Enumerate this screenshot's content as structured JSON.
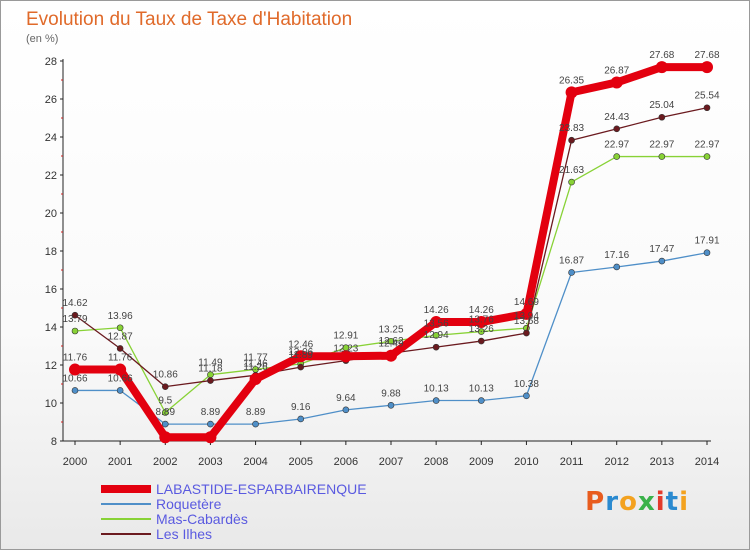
{
  "chart_data": {
    "type": "line",
    "title": "Evolution du Taux de Taxe d'Habitation",
    "subtitle": "(en %)",
    "ylim": [
      8,
      28
    ],
    "yticks": [
      8,
      10,
      12,
      14,
      16,
      18,
      20,
      22,
      24,
      26,
      28
    ],
    "grid": false,
    "legend_position": "bottom-left",
    "categories": [
      "2000",
      "2001",
      "2002",
      "2003",
      "2004",
      "2005",
      "2006",
      "2007",
      "2008",
      "2009",
      "2010",
      "2011",
      "2012",
      "2013",
      "2014"
    ],
    "series": [
      {
        "name": "LABASTIDE-ESPARBAIRENQUE",
        "color": "#e3000f",
        "values": [
          11.76,
          11.76,
          8.2,
          8.2,
          11.26,
          12.46,
          12.46,
          12.49,
          14.26,
          14.26,
          14.69,
          26.35,
          26.87,
          27.68,
          27.68
        ],
        "labels": [
          "11.76",
          "11.76",
          "",
          "",
          "11.26",
          "12.46",
          "",
          "12.49",
          "14.26",
          "14.26",
          "14.69",
          "26.35",
          "26.87",
          "27.68",
          "27.68"
        ]
      },
      {
        "name": "Roquetère",
        "color": "#4f8fc8",
        "values": [
          10.66,
          10.66,
          8.89,
          8.89,
          8.89,
          9.16,
          9.64,
          9.88,
          10.13,
          10.13,
          10.38,
          16.87,
          17.16,
          17.47,
          17.91
        ],
        "labels": [
          "10.66",
          "10.66",
          "8.89",
          "8.89",
          "8.89",
          "9.16",
          "9.64",
          "9.88",
          "10.13",
          "10.13",
          "10.38",
          "16.87",
          "17.16",
          "17.47",
          "17.91"
        ]
      },
      {
        "name": "Mas-Cabardès",
        "color": "#88d236",
        "values": [
          13.79,
          13.96,
          9.5,
          11.49,
          11.77,
          12.06,
          12.91,
          13.25,
          13.56,
          13.76,
          13.94,
          21.63,
          22.97,
          22.97,
          22.97
        ],
        "labels": [
          "13.79",
          "13.96",
          "9.5",
          "11.49",
          "11.77",
          "12.06",
          "12.91",
          "13.25",
          "13.56",
          "13.76",
          "13.94",
          "21.63",
          "22.97",
          "22.97",
          "22.97"
        ]
      },
      {
        "name": "Les Ilhes",
        "color": "#6b1a1f",
        "values": [
          14.62,
          12.87,
          10.86,
          11.18,
          11.46,
          11.89,
          12.23,
          12.62,
          12.94,
          13.26,
          13.68,
          23.83,
          24.43,
          25.04,
          25.54
        ],
        "labels": [
          "14.62",
          "12.87",
          "10.86",
          "11.18",
          "11.46",
          "11.89",
          "12.23",
          "12.62",
          "12.94",
          "13.26",
          "13.68",
          "23.83",
          "24.43",
          "25.04",
          "25.54"
        ]
      }
    ]
  },
  "logo": {
    "letters": [
      "P",
      "r",
      "o",
      "x",
      "i",
      "t",
      "i"
    ],
    "colors": [
      "#e85c1e",
      "#2a8ad0",
      "#f3a21f",
      "#3ab24a",
      "#e33b2b",
      "#2a8ad0",
      "#f3a21f"
    ]
  }
}
